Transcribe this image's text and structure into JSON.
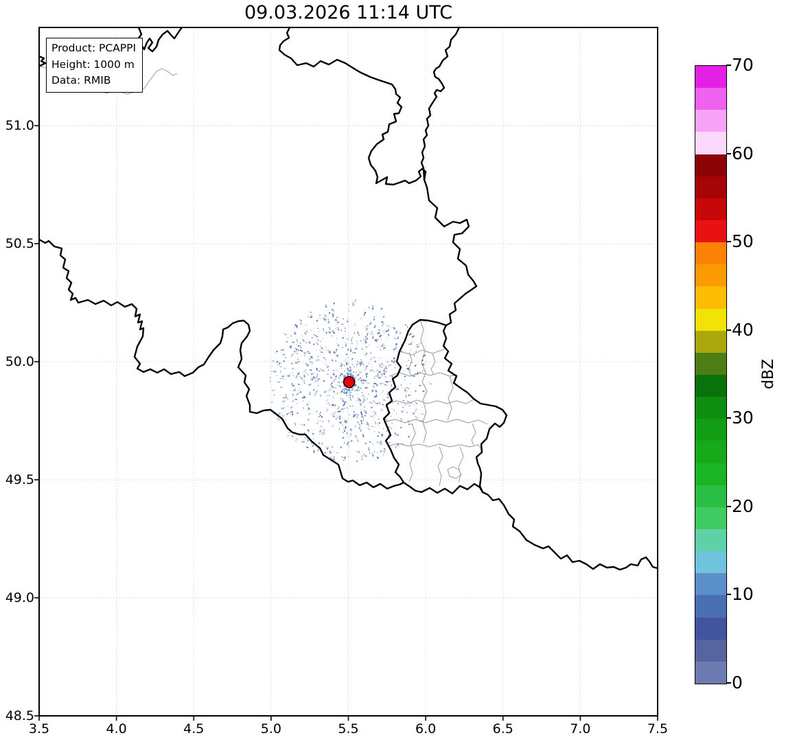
{
  "style": {
    "background": "#ffffff",
    "grid_color": "#c9c9c9",
    "spine_color": "#000000",
    "country_border_color": "#000000",
    "region_border_color": "#a9a9a9"
  },
  "chart_data": {
    "type": "map",
    "map_type": "weather-radar-reflectivity-PCAPPI",
    "title": "09.03.2026 11:14 UTC",
    "annotations": [
      "Product: PCAPPI",
      "Height: 1000 m",
      "Data: RMIB"
    ],
    "x_axis": {
      "label": "",
      "range": [
        3.5,
        7.5
      ],
      "ticks": [
        3.5,
        4.0,
        4.5,
        5.0,
        5.5,
        6.0,
        6.5,
        7.0,
        7.5
      ],
      "tick_labels": [
        "3.5",
        "4.0",
        "4.5",
        "5.0",
        "5.5",
        "6.0",
        "6.5",
        "7.0",
        "7.5"
      ],
      "grid": true
    },
    "y_axis": {
      "label": "",
      "range": [
        48.5,
        51.416
      ],
      "ticks": [
        51.0,
        50.5,
        50.0,
        49.5,
        49.0,
        48.5
      ],
      "tick_labels": [
        "51.0",
        "50.5",
        "50.0",
        "49.5",
        "49.0",
        "48.5"
      ],
      "grid": true
    },
    "colorbar": {
      "label": "dBZ",
      "range": [
        0,
        70
      ],
      "step": 2.5,
      "ticks": [
        0,
        10,
        20,
        30,
        40,
        50,
        60,
        70
      ],
      "tick_labels": [
        "0",
        "10",
        "20",
        "30",
        "40",
        "50",
        "60",
        "70"
      ],
      "colors_bottom_to_top": [
        "#6d7bb0",
        "#56659f",
        "#4253a0",
        "#4a6fb3",
        "#5b8fc9",
        "#6ec4dc",
        "#60d0a8",
        "#3fcb62",
        "#2abf44",
        "#1ab525",
        "#16aa1b",
        "#129e14",
        "#0e8e0e",
        "#0a720a",
        "#4e7d15",
        "#a9a90e",
        "#f2e205",
        "#fdbd05",
        "#fc9a03",
        "#fb8304",
        "#e81212",
        "#c80808",
        "#a60505",
        "#8b0304",
        "#fcd8fc",
        "#f8a2f8",
        "#ef62ef",
        "#e320e3"
      ]
    },
    "radar_site": {
      "lon": 5.505,
      "lat": 49.914
    },
    "radar_marker": {
      "color": "#e8000b",
      "edge_color": "#1a0000",
      "radius_px": 8
    },
    "echoes_summary": "sparse low-reflectivity clutter echoes (mostly 0-15 dBZ) scattered radially within about 0.52 degrees of the radar site"
  },
  "scatter": {
    "seed": 77,
    "spoke_count": 900,
    "core_count": 150,
    "max_radius_px": 118,
    "colors": [
      "#4253a0",
      "#56659f",
      "#4a6fb3",
      "#5b8fc9",
      "#6ec4dc",
      "#6d7bb0"
    ],
    "color_weights": [
      0.2,
      0.18,
      0.28,
      0.18,
      0.06,
      0.1
    ]
  },
  "map": {
    "country_borders": [
      [
        202,
        40,
        206,
        50,
        201,
        57,
        205,
        64,
        210,
        72,
        214,
        62,
        218,
        56,
        222,
        62,
        216,
        70,
        222,
        75,
        228,
        68,
        231,
        58,
        237,
        50,
        244,
        45,
        250,
        52,
        254,
        56,
        258,
        50,
        262,
        44,
        265,
        40
      ],
      [
        57,
        82,
        64,
        85,
        60,
        89,
        66,
        92,
        58,
        96
      ],
      [
        422,
        40,
        418,
        48,
        421,
        55,
        413,
        60,
        408,
        66,
        407,
        73,
        415,
        80,
        424,
        85,
        433,
        95,
        446,
        92,
        457,
        97,
        467,
        89,
        479,
        94,
        491,
        87,
        503,
        92,
        511,
        97,
        524,
        105,
        539,
        112,
        550,
        116,
        562,
        120,
        571,
        123,
        576,
        130,
        577,
        137,
        583,
        142,
        579,
        150,
        585,
        156,
        581,
        165,
        574,
        166,
        577,
        177,
        567,
        181,
        565,
        192,
        557,
        196,
        559,
        203,
        549,
        210,
        541,
        220,
        537,
        230,
        540,
        240,
        547,
        249,
        550,
        258,
        548,
        267,
        557,
        262,
        564,
        258,
        562,
        268,
        573,
        269,
        582,
        266,
        590,
        263,
        596,
        267,
        606,
        263,
        613,
        257,
        610,
        250,
        615,
        246,
        620,
        250,
        618,
        262
      ],
      [
        669,
        40,
        664,
        50,
        657,
        58,
        655,
        68,
        649,
        73,
        652,
        82,
        645,
        88,
        640,
        97,
        635,
        100,
        632,
        105,
        634,
        112,
        639,
        115,
        644,
        122,
        647,
        128,
        642,
        133,
        636,
        131,
        633,
        136,
        636,
        141,
        630,
        150,
        625,
        158,
        627,
        168,
        622,
        173,
        624,
        183,
        620,
        190,
        622,
        197,
        617,
        203,
        619,
        213,
        615,
        222,
        617,
        230,
        614,
        237,
        617,
        245,
        618,
        262
      ],
      [
        618,
        262,
        622,
        273,
        625,
        292,
        637,
        303,
        634,
        317,
        647,
        330,
        660,
        323,
        670,
        325,
        680,
        320,
        683,
        330,
        673,
        340,
        662,
        342,
        660,
        353,
        670,
        363,
        667,
        377,
        679,
        387,
        682,
        400,
        690,
        410,
        694,
        417,
        687,
        422,
        678,
        428,
        670,
        435,
        662,
        442,
        664,
        452,
        655,
        458,
        657,
        470,
        650,
        474
      ],
      [
        650,
        474,
        638,
        470,
        624,
        467,
        612,
        466,
        601,
        473,
        595,
        482,
        590,
        496,
        582,
        512,
        578,
        527,
        584,
        535,
        579,
        547,
        572,
        552,
        576,
        564,
        567,
        572,
        571,
        584,
        563,
        590,
        567,
        602,
        559,
        610,
        564,
        622,
        569,
        634,
        562,
        642,
        569,
        655,
        574,
        667,
        581,
        677,
        576,
        688,
        583,
        695,
        588,
        703
      ],
      [
        57,
        349,
        66,
        354,
        71,
        351,
        79,
        359,
        90,
        362,
        88,
        372,
        95,
        378,
        92,
        390,
        100,
        395,
        97,
        405,
        104,
        412,
        100,
        422,
        106,
        428,
        103,
        437,
        110,
        434,
        114,
        441,
        128,
        437,
        139,
        443,
        151,
        438,
        162,
        445,
        171,
        440,
        182,
        447,
        192,
        443,
        199,
        450,
        197,
        461,
        204,
        458,
        201,
        470,
        207,
        468,
        204,
        480,
        209,
        478,
        208,
        490,
        200,
        505,
        196,
        520,
        204,
        530,
        200,
        537,
        209,
        542,
        219,
        538,
        229,
        543,
        239,
        538,
        249,
        545,
        261,
        542,
        269,
        548,
        281,
        543,
        289,
        535,
        297,
        531,
        304,
        520,
        311,
        510,
        316,
        505,
        321,
        500,
        324,
        490,
        325,
        480,
        332,
        477,
        339,
        471,
        347,
        468,
        355,
        467,
        362,
        473,
        364,
        482,
        360,
        490,
        352,
        500,
        350,
        510,
        352,
        523,
        347,
        535,
        358,
        547,
        356,
        557,
        363,
        567,
        359,
        577,
        364,
        590,
        364,
        600,
        374,
        602,
        384,
        598,
        394,
        597,
        403,
        604,
        411,
        610,
        419,
        624,
        426,
        630,
        436,
        633,
        445,
        633,
        454,
        643,
        466,
        653,
        471,
        663,
        479,
        668,
        487,
        673,
        493,
        677,
        496,
        687,
        499,
        697,
        507,
        702,
        514,
        700,
        524,
        707,
        534,
        703,
        544,
        710,
        554,
        705,
        564,
        712,
        574,
        708,
        582,
        706,
        588,
        703
      ],
      [
        588,
        703,
        597,
        709,
        605,
        715,
        614,
        717,
        626,
        711,
        637,
        718,
        648,
        712,
        659,
        719,
        670,
        708,
        681,
        713,
        691,
        705,
        699,
        710,
        703,
        717
      ],
      [
        650,
        474,
        646,
        482,
        650,
        493,
        646,
        504,
        653,
        512,
        648,
        522,
        658,
        530,
        653,
        540,
        665,
        548,
        661,
        558,
        672,
        566,
        681,
        572,
        690,
        581,
        700,
        588,
        711,
        590,
        722,
        592,
        732,
        597,
        738,
        605,
        734,
        616,
        728,
        622,
        721,
        617,
        713,
        625,
        709,
        639,
        701,
        647,
        702,
        659,
        694,
        666,
        696,
        675,
        699,
        682,
        701,
        690,
        700,
        700,
        699,
        708,
        703,
        717
      ],
      [
        703,
        717,
        711,
        721,
        718,
        729,
        727,
        727,
        734,
        736,
        741,
        749,
        749,
        757,
        747,
        767,
        757,
        774,
        767,
        787,
        779,
        794,
        791,
        799,
        799,
        796,
        807,
        804,
        817,
        814,
        826,
        809,
        834,
        819,
        844,
        817,
        854,
        822,
        864,
        829,
        874,
        822,
        884,
        827,
        894,
        826,
        903,
        830,
        912,
        827,
        919,
        822,
        929,
        824,
        934,
        815,
        941,
        812,
        946,
        818,
        951,
        826,
        958,
        828
      ]
    ],
    "region_borders": [
      [
        57,
        96,
        70,
        100,
        85,
        103,
        95,
        110,
        86,
        118,
        96,
        126,
        110,
        130,
        125,
        135,
        140,
        131,
        155,
        136,
        170,
        132,
        185,
        137,
        200,
        133,
        210,
        129,
        216,
        120,
        222,
        112,
        228,
        104,
        236,
        100,
        244,
        104,
        252,
        110,
        258,
        107
      ],
      [
        583,
        512,
        600,
        517,
        615,
        510,
        630,
        515,
        649,
        508
      ],
      [
        612,
        466,
        617,
        480,
        613,
        495,
        619,
        512
      ],
      [
        567,
        548,
        582,
        543,
        597,
        548,
        612,
        543,
        627,
        547,
        641,
        543,
        655,
        548,
        666,
        546
      ],
      [
        563,
        589,
        578,
        584,
        593,
        588,
        608,
        583,
        622,
        588,
        637,
        584,
        651,
        588,
        665,
        584,
        679,
        588,
        690,
        582
      ],
      [
        619,
        512,
        614,
        528,
        620,
        543,
        615,
        556,
        622,
        570,
        616,
        583,
        621,
        600,
        616,
        615,
        621,
        630,
        617,
        645
      ],
      [
        655,
        548,
        660,
        565,
        653,
        580,
        658,
        595,
        652,
        612
      ],
      [
        560,
        615,
        575,
        611,
        590,
        616,
        605,
        611,
        620,
        616,
        635,
        611,
        650,
        615,
        666,
        611,
        682,
        616,
        697,
        612,
        710,
        618
      ],
      [
        565,
        650,
        580,
        646,
        595,
        650,
        610,
        647,
        625,
        651,
        640,
        647,
        655,
        651,
        670,
        648,
        684,
        651,
        697,
        648,
        701,
        655
      ],
      [
        600,
        617,
        605,
        632,
        598,
        647,
        603,
        662,
        597,
        676,
        601,
        690,
        596,
        702
      ],
      [
        640,
        651,
        645,
        665,
        638,
        679,
        643,
        694,
        640,
        708
      ],
      [
        670,
        651,
        675,
        665,
        668,
        680,
        671,
        692,
        668,
        703
      ],
      [
        688,
        617,
        693,
        630,
        687,
        641,
        690,
        648
      ],
      [
        596,
        513,
        600,
        525,
        595,
        538,
        599,
        547
      ],
      [
        630,
        515,
        634,
        527,
        628,
        538,
        632,
        546
      ],
      [
        652,
        684,
        660,
        680,
        668,
        684,
        672,
        692,
        664,
        697,
        655,
        694,
        652,
        684
      ]
    ]
  }
}
